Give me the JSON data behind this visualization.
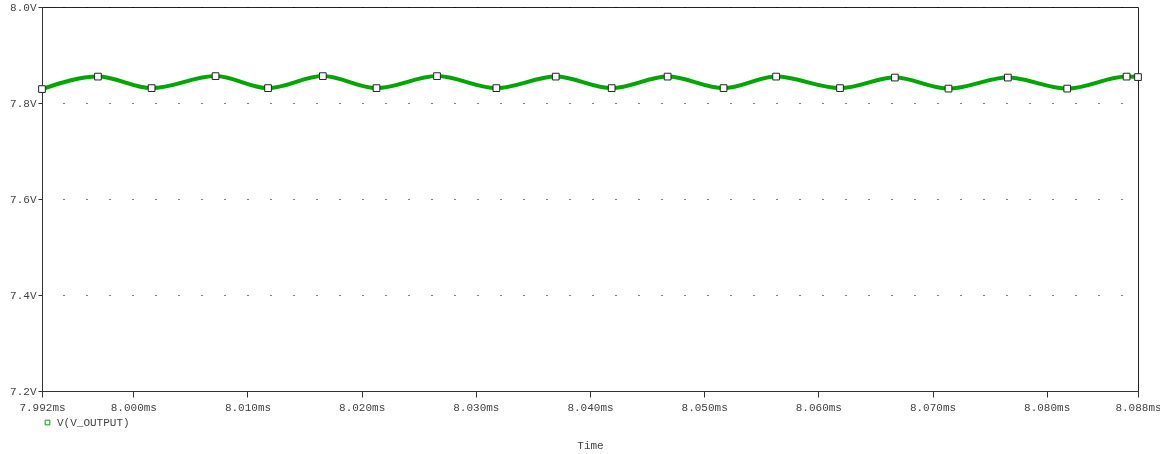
{
  "chart_data": {
    "type": "line",
    "xlabel": "Time",
    "x": [
      7.992,
      7.9969,
      8.0016,
      8.0072,
      8.0118,
      8.0166,
      8.0213,
      8.0266,
      8.0318,
      8.037,
      8.0419,
      8.0468,
      8.0517,
      8.0563,
      8.0619,
      8.0667,
      8.0714,
      8.0766,
      8.0818,
      8.087,
      8.088
    ],
    "series": [
      {
        "name": "V(V_OUTPUT)",
        "color": "#00a600",
        "values": [
          7.829,
          7.855,
          7.831,
          7.856,
          7.831,
          7.856,
          7.831,
          7.856,
          7.831,
          7.855,
          7.831,
          7.855,
          7.831,
          7.855,
          7.831,
          7.853,
          7.83,
          7.853,
          7.83,
          7.855,
          7.854
        ]
      }
    ],
    "xlim": [
      7.992,
      8.088
    ],
    "xticks": [
      {
        "value": 7.992,
        "label": "7.992ms"
      },
      {
        "value": 8.0,
        "label": "8.000ms"
      },
      {
        "value": 8.01,
        "label": "8.010ms"
      },
      {
        "value": 8.02,
        "label": "8.020ms"
      },
      {
        "value": 8.03,
        "label": "8.030ms"
      },
      {
        "value": 8.04,
        "label": "8.040ms"
      },
      {
        "value": 8.05,
        "label": "8.050ms"
      },
      {
        "value": 8.06,
        "label": "8.060ms"
      },
      {
        "value": 8.07,
        "label": "8.070ms"
      },
      {
        "value": 8.08,
        "label": "8.080ms"
      },
      {
        "value": 8.088,
        "label": "8.088ms"
      }
    ],
    "ylim": [
      7.2,
      8.0
    ],
    "yticks": [
      {
        "value": 7.2,
        "label": "7.2V"
      },
      {
        "value": 7.4,
        "label": "7.4V"
      },
      {
        "value": 7.6,
        "label": "7.6V"
      },
      {
        "value": 7.8,
        "label": "7.8V"
      },
      {
        "value": 8.0,
        "label": "8.0V"
      }
    ],
    "grid": "y",
    "legend": "bottom left",
    "marker": "square",
    "line_style": "solid"
  }
}
